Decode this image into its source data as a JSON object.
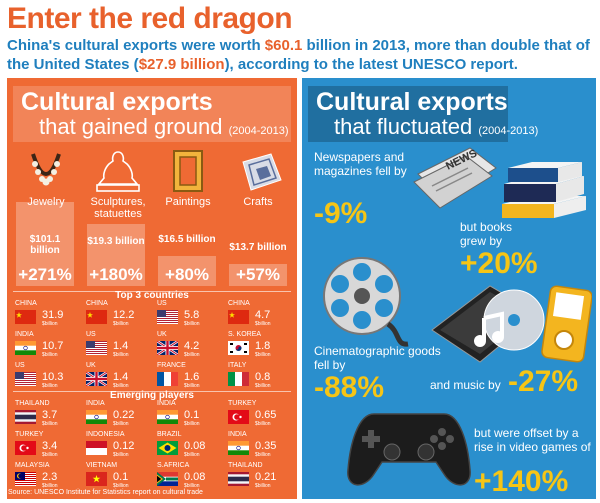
{
  "headline": "Enter the red dragon",
  "intro": {
    "p1": "China's cultural exports were worth ",
    "china_value": "$60.1",
    "p2": " billion in 2013, more than double that of the United States (",
    "us_value": "$27.9 billion",
    "p3": "), according to the latest UNESCO report."
  },
  "left_panel": {
    "title_line1": "Cultural exports",
    "title_line2": "that gained ground",
    "years": "(2004-2013)",
    "categories": [
      {
        "label": "Jewelry",
        "icon": "necklace-icon",
        "value": "$101.1 billion",
        "change": "+271%"
      },
      {
        "label": "Sculptures, statuettes",
        "icon": "statue-icon",
        "value": "$19.3 billion",
        "change": "+180%"
      },
      {
        "label": "Paintings",
        "icon": "frame-icon",
        "value": "$16.5 billion",
        "change": "+80%"
      },
      {
        "label": "Crafts",
        "icon": "carpet-icon",
        "value": "$13.7 billion",
        "change": "+57%"
      }
    ],
    "top3_heading": "Top 3 countries",
    "top3": [
      [
        {
          "country": "CHINA",
          "value": "31.9",
          "unit": "$billion",
          "flag": "cn"
        },
        {
          "country": "INDIA",
          "value": "10.7",
          "unit": "$billion",
          "flag": "in"
        },
        {
          "country": "US",
          "value": "10.3",
          "unit": "$billion",
          "flag": "us"
        }
      ],
      [
        {
          "country": "CHINA",
          "value": "12.2",
          "unit": "$billion",
          "flag": "cn"
        },
        {
          "country": "US",
          "value": "1.4",
          "unit": "$billion",
          "flag": "us"
        },
        {
          "country": "UK",
          "value": "1.4",
          "unit": "$billion",
          "flag": "uk"
        }
      ],
      [
        {
          "country": "US",
          "value": "5.8",
          "unit": "$billion",
          "flag": "us"
        },
        {
          "country": "UK",
          "value": "4.2",
          "unit": "$billion",
          "flag": "uk"
        },
        {
          "country": "FRANCE",
          "value": "1.6",
          "unit": "$billion",
          "flag": "fr"
        }
      ],
      [
        {
          "country": "CHINA",
          "value": "4.7",
          "unit": "$billion",
          "flag": "cn"
        },
        {
          "country": "S. KOREA",
          "value": "1.8",
          "unit": "$billion",
          "flag": "kr"
        },
        {
          "country": "ITALY",
          "value": "0.8",
          "unit": "$billion",
          "flag": "it"
        }
      ]
    ],
    "emerging_heading": "Emerging players",
    "emerging": [
      [
        {
          "country": "THAILAND",
          "value": "3.7",
          "unit": "$billion",
          "flag": "th"
        },
        {
          "country": "TURKEY",
          "value": "3.4",
          "unit": "$billion",
          "flag": "tr"
        },
        {
          "country": "MALAYSIA",
          "value": "2.3",
          "unit": "$billion",
          "flag": "my"
        }
      ],
      [
        {
          "country": "INDIA",
          "value": "0.22",
          "unit": "$billion",
          "flag": "in"
        },
        {
          "country": "INDONESIA",
          "value": "0.12",
          "unit": "$billion",
          "flag": "id"
        },
        {
          "country": "VIETNAM",
          "value": "0.1",
          "unit": "$billion",
          "flag": "vn"
        }
      ],
      [
        {
          "country": "INDIA",
          "value": "0.1",
          "unit": "$billion",
          "flag": "in"
        },
        {
          "country": "BRAZIL",
          "value": "0.08",
          "unit": "$billion",
          "flag": "br"
        },
        {
          "country": "S.AFRICA",
          "value": "0.08",
          "unit": "$billion",
          "flag": "za"
        }
      ],
      [
        {
          "country": "TURKEY",
          "value": "0.65",
          "unit": "$billion",
          "flag": "tr"
        },
        {
          "country": "INDIA",
          "value": "0.35",
          "unit": "$billion",
          "flag": "in"
        },
        {
          "country": "THAILAND",
          "value": "0.21",
          "unit": "$billion",
          "flag": "th"
        }
      ]
    ],
    "source": "Source: UNESCO Institute for Statistics report on cultural trade"
  },
  "right_panel": {
    "title_line1": "Cultural exports",
    "title_line2": "that fluctuated",
    "years": "(2004-2013)",
    "newspapers_text": "Newspapers and magazines fell by",
    "newspapers_change": "-9%",
    "books_text": "but books grew by",
    "books_change": "+20%",
    "cinema_text": "Cinematographic goods fell by",
    "cinema_change": "-88%",
    "music_text": "and music by",
    "music_change": "-27%",
    "games_text": "but were offset by a rise in video games of",
    "games_change": "+140%",
    "news_label": "NEWS"
  },
  "colors": {
    "orange": "#ef6a34",
    "blue": "#2a8fcd",
    "yellow": "#f6c515",
    "heading_orange": "#e8612c",
    "heading_blue": "#1f7fbe"
  }
}
